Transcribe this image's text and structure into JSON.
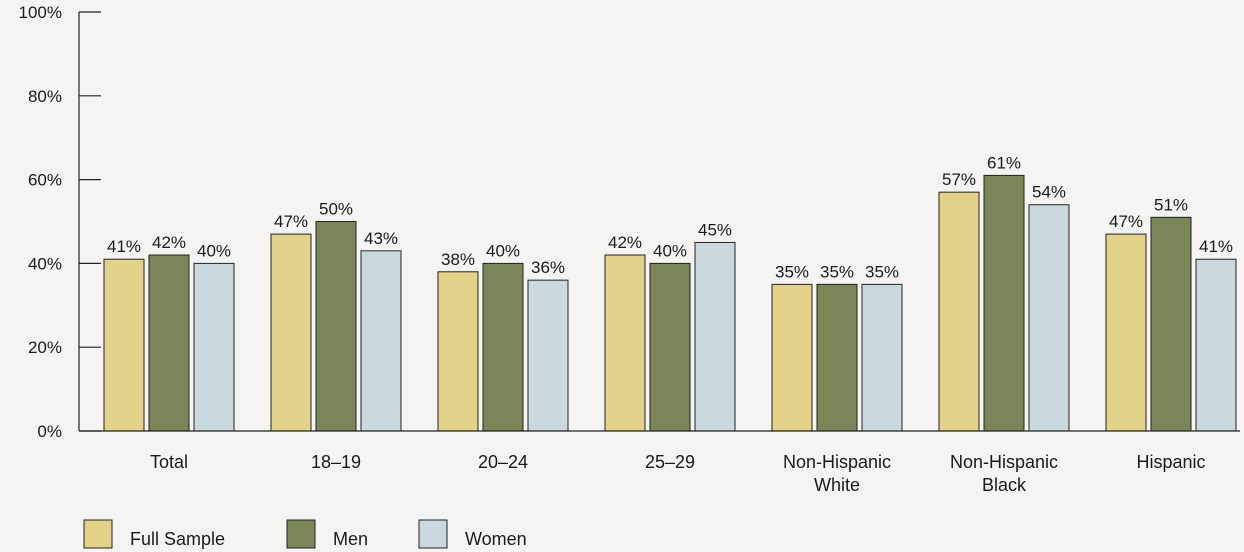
{
  "chart_data": {
    "type": "bar",
    "categories": [
      [
        "Total"
      ],
      [
        "18–19"
      ],
      [
        "20–24"
      ],
      [
        "25–29"
      ],
      [
        "Non-Hispanic",
        "White"
      ],
      [
        "Non-Hispanic",
        "Black"
      ],
      [
        "Hispanic"
      ]
    ],
    "series": [
      {
        "name": "Full Sample",
        "color": "#e3d38a",
        "values": [
          41,
          47,
          38,
          42,
          35,
          57,
          47
        ]
      },
      {
        "name": "Men",
        "color": "#7a8558",
        "values": [
          42,
          50,
          40,
          40,
          35,
          61,
          51
        ]
      },
      {
        "name": "Women",
        "color": "#cbd8de",
        "values": [
          40,
          43,
          36,
          45,
          35,
          54,
          41
        ]
      }
    ],
    "value_suffix": "%",
    "ylim": [
      0,
      100
    ],
    "yticks": [
      "0%",
      "20%",
      "40%",
      "60%",
      "80%",
      "100%"
    ],
    "ytick_values": [
      0,
      20,
      40,
      60,
      80,
      100
    ],
    "title": "",
    "xlabel": "",
    "ylabel": "",
    "grid": false,
    "legend_position": "bottom-left"
  }
}
